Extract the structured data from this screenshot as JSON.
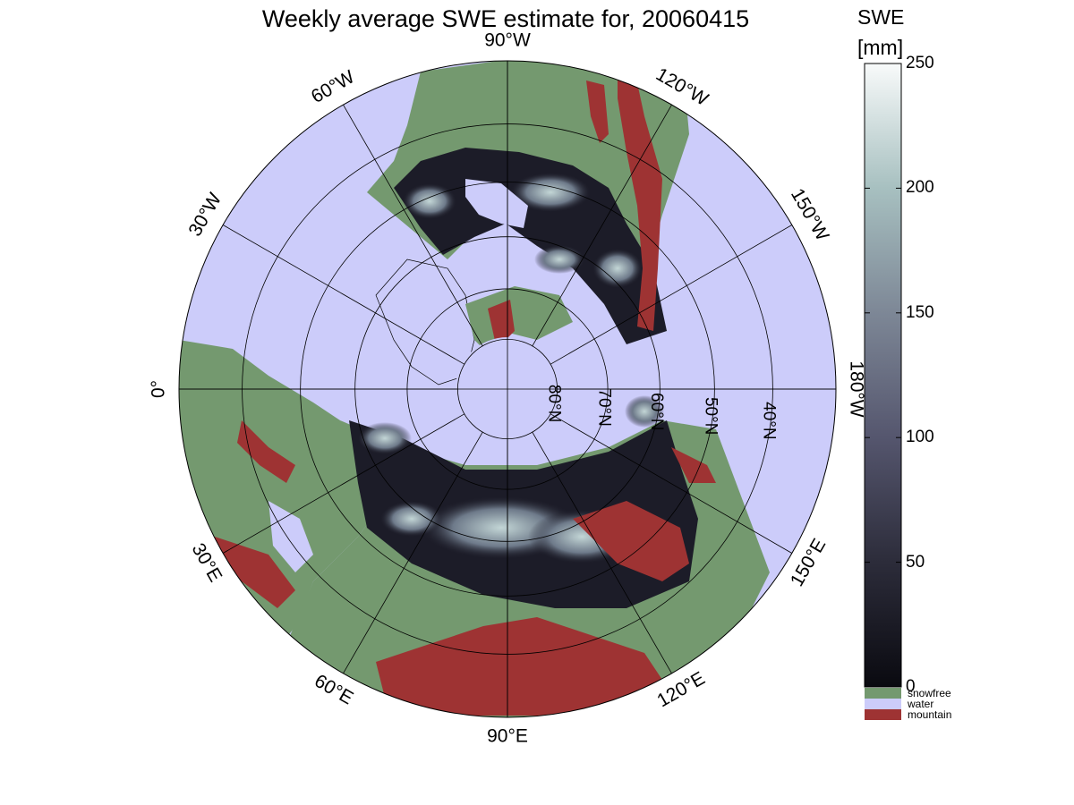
{
  "title": "Weekly average SWE estimate for, 20060415",
  "colorbar": {
    "title_line1": "SWE",
    "title_line2": "[mm]",
    "ticks": [
      "0",
      "50",
      "100",
      "150",
      "200",
      "250"
    ],
    "range": [
      0,
      250
    ],
    "gradient_colors": [
      "#0a0a10",
      "#2c2c3a",
      "#55566e",
      "#7d8796",
      "#a7c0c0",
      "#f8fafa"
    ],
    "legend": [
      {
        "label": "snowfree",
        "color": "#74996f"
      },
      {
        "label": "water",
        "color": "#ccccfa"
      },
      {
        "label": "mountain",
        "color": "#9e3333"
      }
    ]
  },
  "map": {
    "projection": "north-polar stereographic",
    "longitude_labels": [
      "90°W",
      "120°W",
      "150°W",
      "180°W",
      "150°E",
      "120°E",
      "90°E",
      "60°E",
      "30°E",
      "0°",
      "30°W",
      "60°W"
    ],
    "latitude_labels": [
      "80°N",
      "70°N",
      "60°N",
      "50°N",
      "40°N"
    ],
    "colors": {
      "water": "#ccccfa",
      "snowfree": "#74996f",
      "mountain": "#9e3333",
      "snow_low": "#0f0f16",
      "snow_mid": "#55566e",
      "snow_high": "#b5cccc"
    }
  }
}
